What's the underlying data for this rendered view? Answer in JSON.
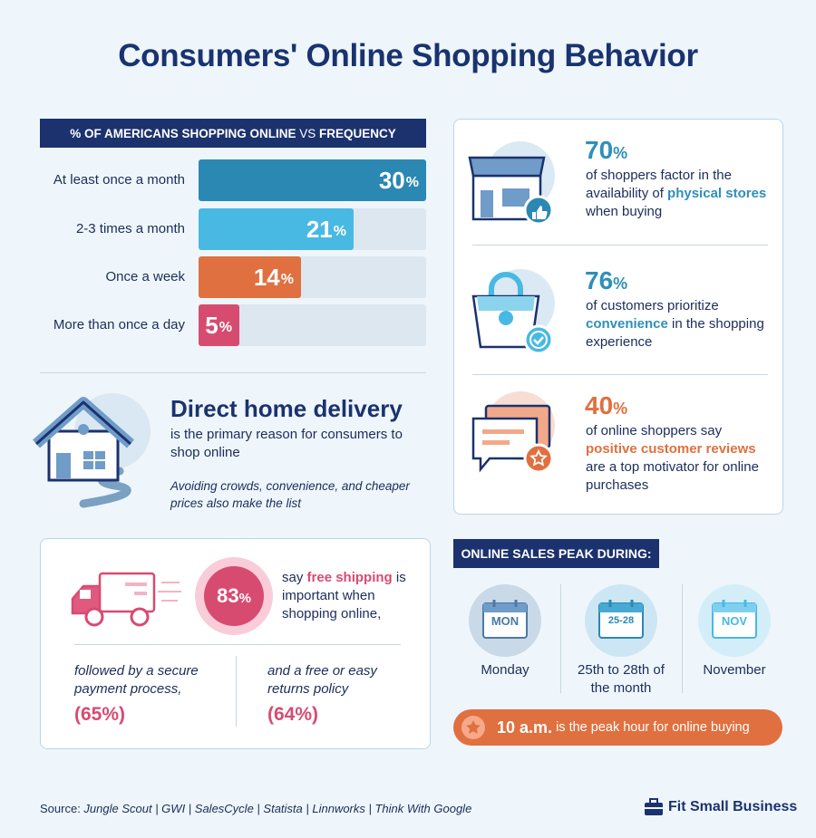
{
  "title": "Consumers' Online Shopping Behavior",
  "frequency_chart": {
    "title_part1": "% OF AMERICANS SHOPPING ONLINE",
    "title_vs": "VS",
    "title_part2": "FREQUENCY",
    "rows": [
      {
        "label": "At least once a month",
        "value": "30",
        "unit": "%",
        "fill": 1.0,
        "color": "#2b88b3"
      },
      {
        "label": "2-3 times a month",
        "value": "21",
        "unit": "%",
        "fill": 0.68,
        "color": "#48b9e3"
      },
      {
        "label": "Once a week",
        "value": "14",
        "unit": "%",
        "fill": 0.45,
        "color": "#e0703f"
      },
      {
        "label": "More than once a day",
        "value": "5",
        "unit": "%",
        "fill": 0.18,
        "color": "#d84b71"
      }
    ]
  },
  "delivery": {
    "heading": "Direct home delivery",
    "text": "is the primary reason for consumers to shop online",
    "note": "Avoiding crowds, convenience, and cheaper prices also make the list"
  },
  "stats": [
    {
      "value": "70",
      "unit": "%",
      "color": "#2f8fb9",
      "before": "of shoppers factor in the availability of ",
      "highlight": "physical stores",
      "after": " when buying"
    },
    {
      "value": "76",
      "unit": "%",
      "color": "#2f8fb9",
      "before": "of customers prioritize ",
      "highlight": "convenience",
      "after": " in the shopping experience"
    },
    {
      "value": "40",
      "unit": "%",
      "color": "#e0703f",
      "before": "of online shoppers say ",
      "highlight": "positive customer reviews",
      "after": " are a top motivator for online purchases"
    }
  ],
  "shipping": {
    "value": "83",
    "unit": "%",
    "before": "say ",
    "highlight": "free shipping",
    "after": " is important when shopping online,",
    "item1_text": "followed by a secure payment process,",
    "item1_value": "(65%)",
    "item2_text": "and a free or easy returns policy",
    "item2_value": "(64%)"
  },
  "peak": {
    "title": "ONLINE SALES PEAK DURING:",
    "items": [
      {
        "icon_text": "MON",
        "label": "Monday"
      },
      {
        "icon_text": "25-28",
        "label": "25th to 28th of the month"
      },
      {
        "icon_text": "NOV",
        "label": "November"
      }
    ],
    "hour_bold": "10 a.m.",
    "hour_text": " is the peak hour for online buying"
  },
  "source": {
    "prefix": "Source: ",
    "items": "Jungle Scout | GWI | SalesCycle | Statista | Linnworks | Think With Google"
  },
  "brand": "Fit Small Business"
}
